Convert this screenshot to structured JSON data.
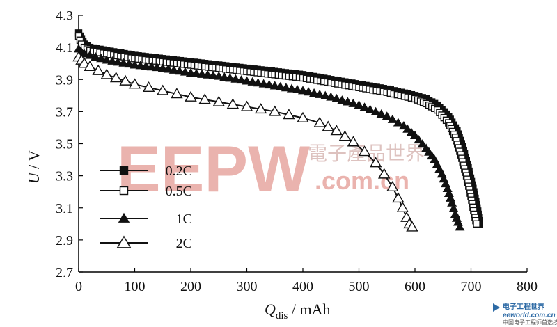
{
  "chart_data": {
    "type": "line",
    "title": "",
    "xlabel_main": "Q",
    "xlabel_sub": "dis",
    "xlabel_unit": " / mAh",
    "ylabel_main": "U",
    "ylabel_unit": " / V",
    "xlim": [
      0,
      800
    ],
    "ylim": [
      2.7,
      4.3
    ],
    "x_ticks": [
      0,
      100,
      200,
      300,
      400,
      500,
      600,
      700,
      800
    ],
    "y_ticks": [
      2.7,
      2.9,
      3.1,
      3.3,
      3.5,
      3.7,
      3.9,
      4.1,
      4.3
    ],
    "grid": false,
    "legend_position": "left-middle",
    "series": [
      {
        "name": "0.2C",
        "marker": "filled-square",
        "x": [
          0,
          5,
          10,
          20,
          50,
          100,
          150,
          200,
          250,
          300,
          350,
          400,
          450,
          500,
          550,
          600,
          620,
          640,
          660,
          675,
          685,
          695,
          705,
          712,
          715
        ],
        "y": [
          4.19,
          4.15,
          4.12,
          4.1,
          4.08,
          4.05,
          4.03,
          4.01,
          3.99,
          3.97,
          3.95,
          3.93,
          3.9,
          3.87,
          3.84,
          3.8,
          3.78,
          3.74,
          3.67,
          3.58,
          3.48,
          3.35,
          3.2,
          3.08,
          3.0
        ]
      },
      {
        "name": "0.5C",
        "marker": "open-square",
        "x": [
          0,
          5,
          10,
          20,
          50,
          100,
          150,
          200,
          250,
          300,
          350,
          400,
          450,
          500,
          550,
          600,
          620,
          640,
          660,
          672,
          682,
          692,
          700,
          706,
          710
        ],
        "y": [
          4.17,
          4.12,
          4.1,
          4.08,
          4.06,
          4.03,
          4.01,
          3.99,
          3.97,
          3.95,
          3.93,
          3.91,
          3.88,
          3.85,
          3.82,
          3.78,
          3.75,
          3.71,
          3.63,
          3.54,
          3.43,
          3.3,
          3.17,
          3.06,
          3.0
        ]
      },
      {
        "name": "1C",
        "marker": "filled-triangle",
        "x": [
          0,
          5,
          10,
          20,
          50,
          100,
          150,
          200,
          250,
          300,
          350,
          400,
          450,
          500,
          550,
          580,
          600,
          620,
          635,
          648,
          658,
          666,
          672,
          677,
          680
        ],
        "y": [
          4.09,
          4.07,
          4.06,
          4.05,
          4.02,
          3.99,
          3.97,
          3.94,
          3.92,
          3.89,
          3.86,
          3.83,
          3.79,
          3.74,
          3.67,
          3.61,
          3.55,
          3.47,
          3.4,
          3.31,
          3.22,
          3.13,
          3.06,
          3.01,
          2.98
        ]
      },
      {
        "name": "2C",
        "marker": "open-triangle",
        "x": [
          0,
          5,
          10,
          20,
          50,
          100,
          150,
          200,
          250,
          300,
          350,
          400,
          430,
          460,
          490,
          510,
          530,
          545,
          560,
          570,
          578,
          585,
          590,
          595
        ],
        "y": [
          4.04,
          4.02,
          4.0,
          3.98,
          3.93,
          3.87,
          3.83,
          3.79,
          3.76,
          3.73,
          3.7,
          3.66,
          3.63,
          3.58,
          3.51,
          3.45,
          3.38,
          3.31,
          3.23,
          3.16,
          3.1,
          3.04,
          3.0,
          2.98
        ]
      }
    ]
  },
  "watermark": {
    "logo": "EEPW",
    "domain": ".com.cn",
    "chinese": "電子產品世界",
    "corner_site": "eeworld.com.cn",
    "corner_cn": "电子工程世界",
    "corner_sub": "中国电子工程师首选技术门户"
  },
  "colors": {
    "series": "#111111",
    "watermark": "#e7a6a0"
  }
}
